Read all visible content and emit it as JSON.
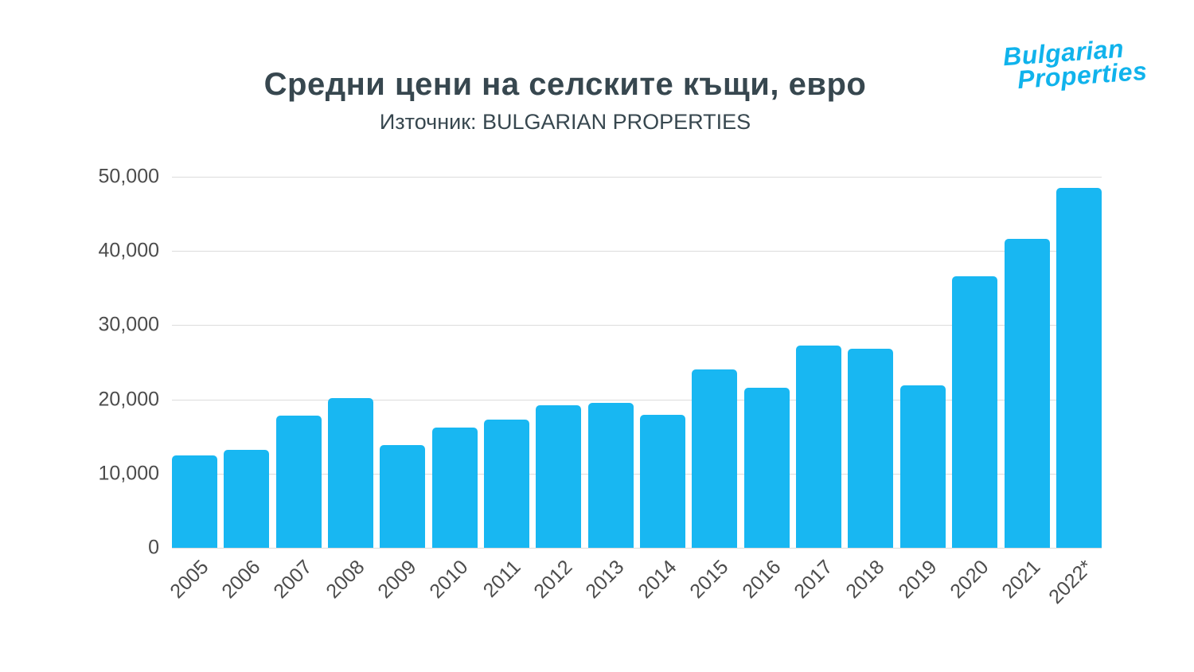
{
  "header": {
    "title": "Средни цени на селските къщи, евро",
    "subtitle": "Източник: BULGARIAN PROPERTIES"
  },
  "logo": {
    "line1": "Bulgarian",
    "line2": "Properties",
    "color": "#10b3ec"
  },
  "chart_data": {
    "type": "bar",
    "title": "Средни цени на селските къщи, евро",
    "subtitle": "Източник: BULGARIAN PROPERTIES",
    "categories": [
      "2005",
      "2006",
      "2007",
      "2008",
      "2009",
      "2010",
      "2011",
      "2012",
      "2013",
      "2014",
      "2015",
      "2016",
      "2017",
      "2018",
      "2019",
      "2020",
      "2021",
      "2022*"
    ],
    "values": [
      12500,
      13200,
      17800,
      20200,
      13800,
      16200,
      17300,
      19200,
      19500,
      17900,
      24000,
      21600,
      27300,
      26800,
      21900,
      36600,
      41600,
      48500
    ],
    "xlabel": "",
    "ylabel": "",
    "ylim": [
      0,
      50000
    ],
    "yticks": [
      0,
      10000,
      20000,
      30000,
      40000,
      50000
    ],
    "ytick_labels": [
      "0",
      "10,000",
      "20,000",
      "30,000",
      "40,000",
      "50,000"
    ],
    "grid": true,
    "legend": "none",
    "bar_color": "#18b7f2"
  }
}
